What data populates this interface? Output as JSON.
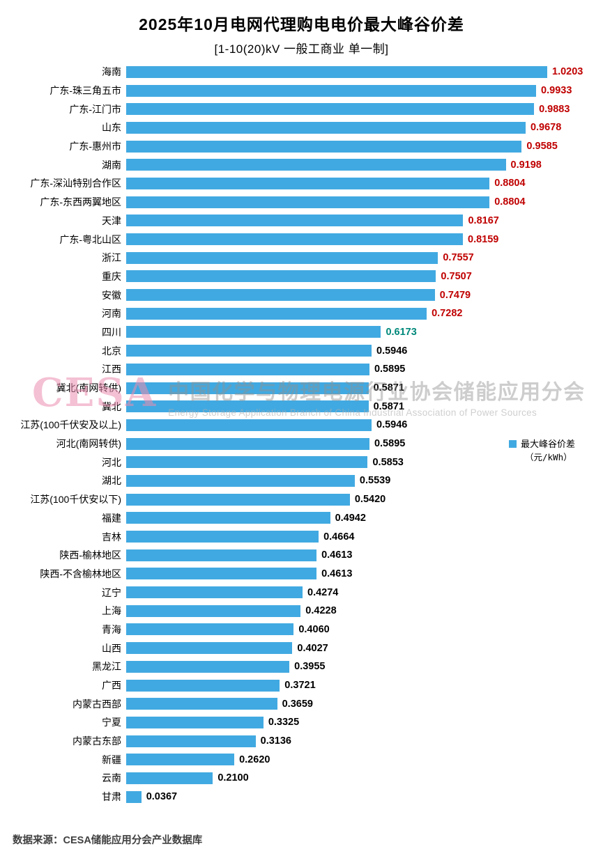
{
  "title": "2025年10月电网代理购电电价最大峰谷价差",
  "subtitle": "[1-10(20)kV 一般工商业 单一制]",
  "legend": {
    "label": "最大峰谷价差",
    "unit": "（元/kWh）"
  },
  "watermark": {
    "logo": "CESA",
    "cn": "中国化学与物理电源行业协会储能应用分会",
    "en": "Energy Storage Application Branch of China Industrial Association of Power Sources"
  },
  "footer": "数据来源：CESA储能应用分会产业数据库",
  "colors": {
    "bar": "#41A9E1",
    "red": "#C00000",
    "green": "#00897B",
    "black": "#000000"
  },
  "chart_data": {
    "type": "bar",
    "orientation": "horizontal",
    "title": "2025年10月电网代理购电电价最大峰谷价差",
    "subtitle": "[1-10(20)kV 一般工商业 单一制]",
    "legend": [
      "最大峰谷价差（元/kWh）"
    ],
    "legend_position": "right",
    "grid": false,
    "xlim": [
      0,
      1.08
    ],
    "value_format": "0.0000",
    "categories": [
      "海南",
      "广东-珠三角五市",
      "广东-江门市",
      "山东",
      "广东-惠州市",
      "湖南",
      "广东-深汕特别合作区",
      "广东-东西两翼地区",
      "天津",
      "广东-粤北山区",
      "浙江",
      "重庆",
      "安徽",
      "河南",
      "四川",
      "北京",
      "江西",
      "冀北(南网转供)",
      "冀北",
      "江苏(100千伏安及以上)",
      "河北(南网转供)",
      "河北",
      "湖北",
      "江苏(100千伏安以下)",
      "福建",
      "吉林",
      "陕西-榆林地区",
      "陕西-不含榆林地区",
      "辽宁",
      "上海",
      "青海",
      "山西",
      "黑龙江",
      "广西",
      "内蒙古西部",
      "宁夏",
      "内蒙古东部",
      "新疆",
      "云南",
      "甘肃"
    ],
    "values": [
      1.0203,
      0.9933,
      0.9883,
      0.9678,
      0.9585,
      0.9198,
      0.8804,
      0.8804,
      0.8167,
      0.8159,
      0.7557,
      0.7507,
      0.7479,
      0.7282,
      0.6173,
      0.5946,
      0.5895,
      0.5871,
      0.5871,
      0.5946,
      0.5895,
      0.5853,
      0.5539,
      0.542,
      0.4942,
      0.4664,
      0.4613,
      0.4613,
      0.4274,
      0.4228,
      0.406,
      0.4027,
      0.3955,
      0.3721,
      0.3659,
      0.3325,
      0.3136,
      0.262,
      0.21,
      0.0367
    ],
    "value_label_colors": [
      "red",
      "red",
      "red",
      "red",
      "red",
      "red",
      "red",
      "red",
      "red",
      "red",
      "red",
      "red",
      "red",
      "red",
      "green",
      "black",
      "black",
      "black",
      "black",
      "black",
      "black",
      "black",
      "black",
      "black",
      "black",
      "black",
      "black",
      "black",
      "black",
      "black",
      "black",
      "black",
      "black",
      "black",
      "black",
      "black",
      "black",
      "black",
      "black",
      "black"
    ]
  }
}
